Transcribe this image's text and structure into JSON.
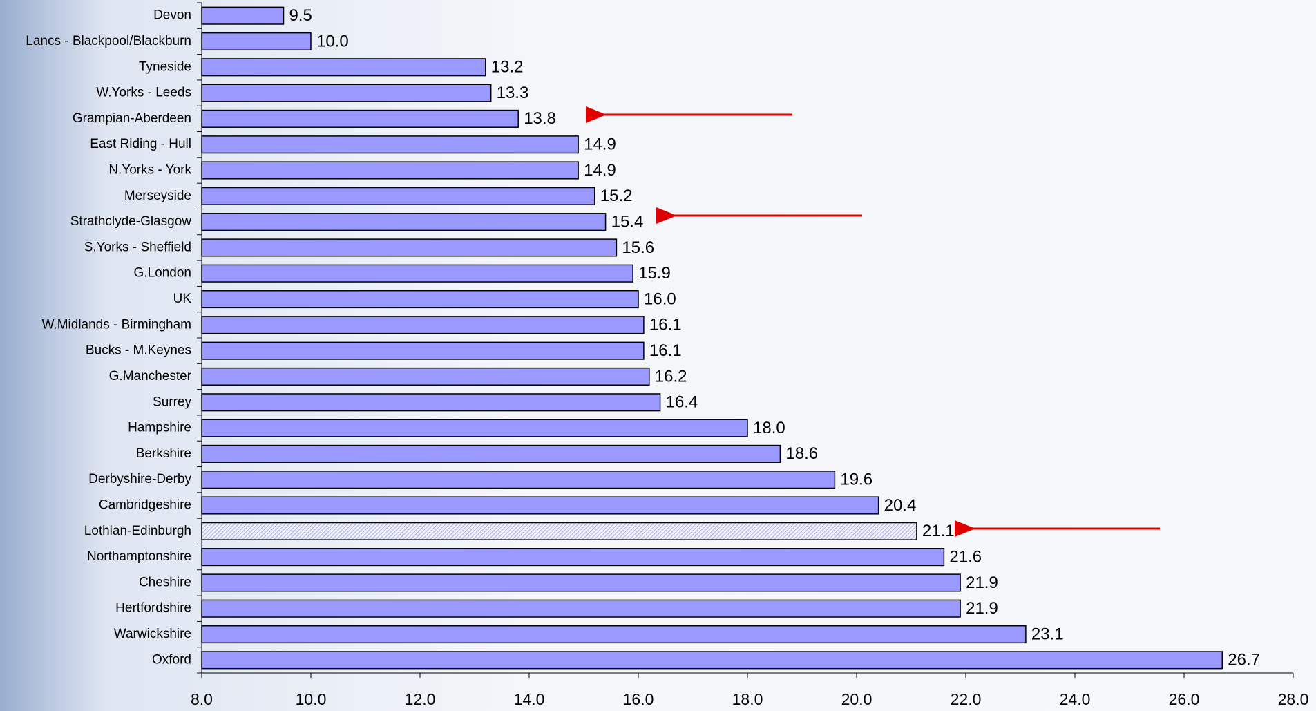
{
  "chart_data": {
    "type": "hbar",
    "categories": [
      "Devon",
      "Lancs - Blackpool/Blackburn",
      "Tyneside",
      "W.Yorks - Leeds",
      "Grampian-Aberdeen",
      "East Riding - Hull",
      "N.Yorks - York",
      "Merseyside",
      "Strathclyde-Glasgow",
      "S.Yorks - Sheffield",
      "G.London",
      "UK",
      "W.Midlands - Birmingham",
      "Bucks - M.Keynes",
      "G.Manchester",
      "Surrey",
      "Hampshire",
      "Berkshire",
      "Derbyshire-Derby",
      "Cambridgeshire",
      "Lothian-Edinburgh",
      "Northamptonshire",
      "Cheshire",
      "Hertfordshire",
      "Warwickshire",
      "Oxford"
    ],
    "values": [
      9.5,
      10.0,
      13.2,
      13.3,
      13.8,
      14.9,
      14.9,
      15.2,
      15.4,
      15.6,
      15.9,
      16.0,
      16.1,
      16.1,
      16.2,
      16.4,
      18.0,
      18.6,
      19.6,
      20.4,
      21.1,
      21.6,
      21.9,
      21.9,
      23.1,
      26.7
    ],
    "value_labels": [
      "9.5",
      "10.0",
      "13.2",
      "13.3",
      "13.8",
      "14.9",
      "14.9",
      "15.2",
      "15.4",
      "15.6",
      "15.9",
      "16.0",
      "16.1",
      "16.1",
      "16.2",
      "16.4",
      "18.0",
      "18.6",
      "19.6",
      "20.4",
      "21.1",
      "21.6",
      "21.9",
      "21.9",
      "23.1",
      "26.7"
    ],
    "color": "#9999ff",
    "hatched": [
      20
    ],
    "xlim": [
      8,
      28
    ],
    "xticks": [
      {
        "value": 8,
        "label": "8.0"
      },
      {
        "value": 10,
        "label": "10.0"
      },
      {
        "value": 12,
        "label": "12.0"
      },
      {
        "value": 14,
        "label": "14.0"
      },
      {
        "value": 16,
        "label": "16.0"
      },
      {
        "value": 18,
        "label": "18.0"
      },
      {
        "value": 20,
        "label": "20.0"
      },
      {
        "value": 22,
        "label": "22.0"
      },
      {
        "value": 24,
        "label": "24.0"
      },
      {
        "value": 26,
        "label": "26.0"
      },
      {
        "value": 28,
        "label": "28.0"
      }
    ]
  }
}
